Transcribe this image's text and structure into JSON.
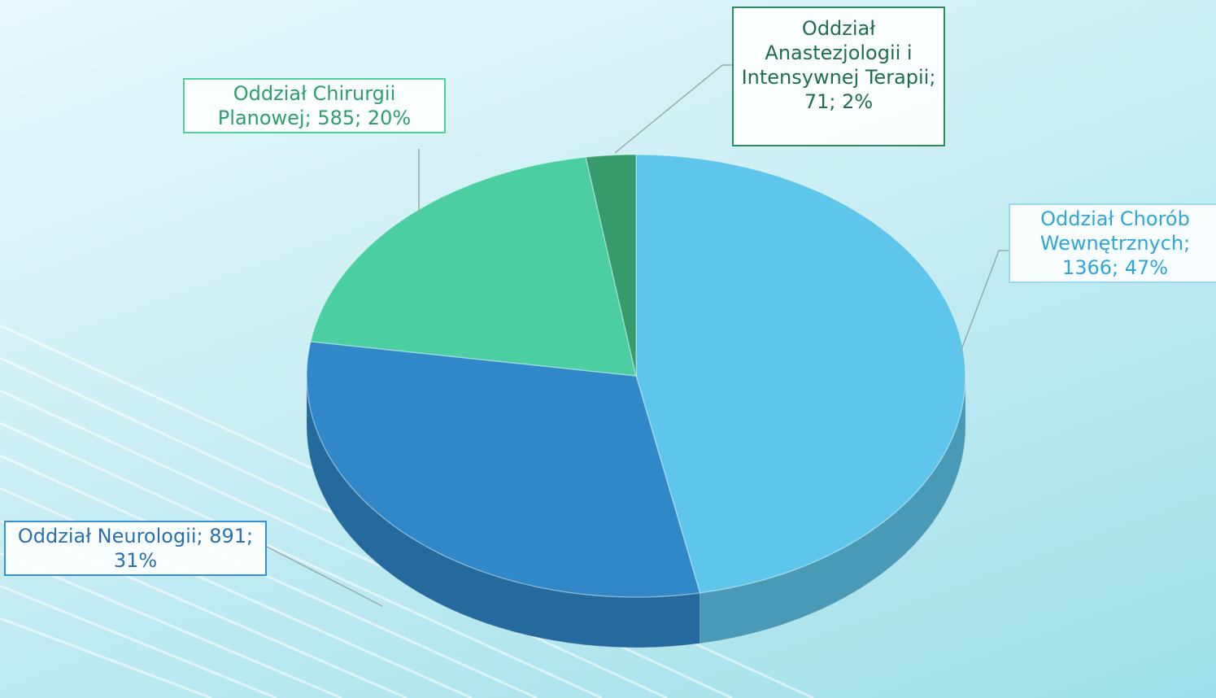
{
  "chart_data": {
    "type": "pie",
    "values": [
      1366,
      891,
      585,
      71
    ],
    "value_labels": [
      "Oddział Chorób Wewnętrznych; 1366; 47%",
      "Oddział Neurologii; 891; 31%",
      "Oddział Chirurgii Planowej; 585; 20%",
      "Oddział Anastezjologii i Intensywnej Terapii; 71; 2%"
    ],
    "colors": [
      "#5ec6eb",
      "#3088c8",
      "#4bcfa2",
      "#379a6c"
    ]
  }
}
